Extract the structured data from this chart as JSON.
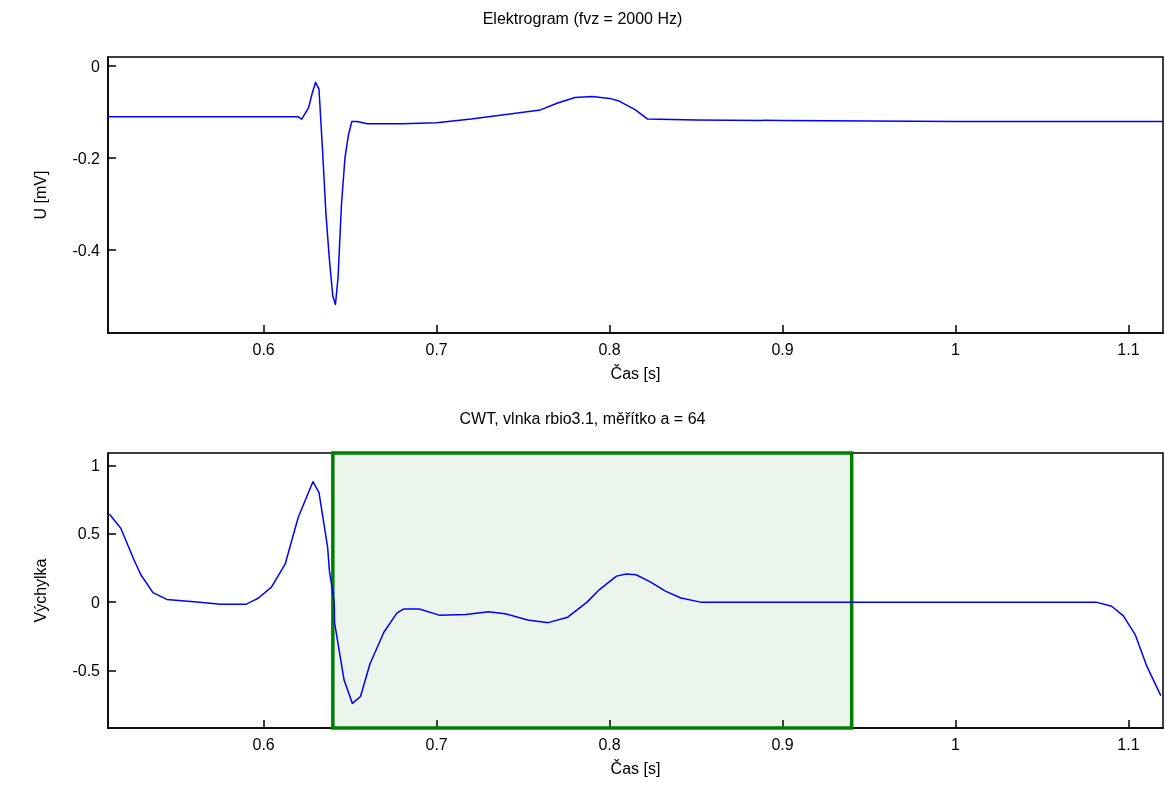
{
  "chart_data": [
    {
      "type": "line",
      "title": "Elektrogram (fvz = 2000 Hz)",
      "xlabel": "Čas [s]",
      "ylabel": "U [mV]",
      "xlim": [
        0.51,
        1.12
      ],
      "xticks": [
        0.6,
        0.7,
        0.8,
        0.9,
        1,
        1.1
      ],
      "ylim": [
        -0.58,
        0.02
      ],
      "yticks": [
        -0.4,
        -0.2,
        0
      ],
      "grid": false,
      "legend": false,
      "marker": "none",
      "line_style": "solid",
      "series": [
        {
          "color": "#0000ff",
          "x": [
            0.51,
            0.55,
            0.6,
            0.62,
            0.622,
            0.626,
            0.628,
            0.63,
            0.632,
            0.634,
            0.636,
            0.638,
            0.64,
            0.6415,
            0.643,
            0.645,
            0.647,
            0.649,
            0.651,
            0.654,
            0.66,
            0.68,
            0.7,
            0.72,
            0.74,
            0.76,
            0.77,
            0.78,
            0.79,
            0.8,
            0.805,
            0.815,
            0.822,
            0.85,
            0.9,
            1,
            1.12
          ],
          "values": [
            -0.11,
            -0.11,
            -0.11,
            -0.11,
            -0.115,
            -0.09,
            -0.06,
            -0.035,
            -0.05,
            -0.18,
            -0.32,
            -0.42,
            -0.5,
            -0.518,
            -0.46,
            -0.3,
            -0.2,
            -0.15,
            -0.12,
            -0.12,
            -0.125,
            -0.125,
            -0.123,
            -0.115,
            -0.105,
            -0.095,
            -0.08,
            -0.068,
            -0.066,
            -0.07,
            -0.075,
            -0.095,
            -0.115,
            -0.117,
            -0.118,
            -0.12,
            -0.12
          ]
        }
      ]
    },
    {
      "type": "line",
      "title": "CWT, vlnka rbio3.1, měřítko a = 64",
      "xlabel": "Čas [s]",
      "ylabel": "Výchylka",
      "xlim": [
        0.51,
        1.12
      ],
      "xticks": [
        0.6,
        0.7,
        0.8,
        0.9,
        1,
        1.1
      ],
      "ylim": [
        -0.92,
        1.09
      ],
      "yticks": [
        -0.5,
        0,
        0.5,
        1
      ],
      "grid": false,
      "legend": false,
      "marker": "none",
      "line_style": "solid",
      "bands": [
        {
          "axis": "x",
          "from": 0.64,
          "to": 0.94,
          "color": "#008000"
        }
      ],
      "series": [
        {
          "color": "#0000ff",
          "x": [
            0.511,
            0.5174,
            0.525,
            0.529,
            0.536,
            0.544,
            0.563,
            0.575,
            0.59,
            0.597,
            0.6045,
            0.6125,
            0.62,
            0.6285,
            0.632,
            0.637,
            0.638,
            0.6408,
            0.641,
            0.6465,
            0.6513,
            0.656,
            0.6615,
            0.6695,
            0.677,
            0.681,
            0.69,
            0.7015,
            0.717,
            0.73,
            0.7396,
            0.7527,
            0.7645,
            0.7758,
            0.787,
            0.794,
            0.804,
            0.8097,
            0.8153,
            0.8233,
            0.8323,
            0.8413,
            0.8527,
            0.95,
            1.0813,
            1.0903,
            1.0971,
            1.104,
            1.1107,
            1.1186
          ],
          "values": [
            0.64,
            0.54,
            0.31,
            0.2,
            0.07,
            0.02,
            0,
            -0.015,
            -0.015,
            0.03,
            0.11,
            0.28,
            0.62,
            0.88,
            0.8,
            0.4,
            0.23,
            0,
            -0.15,
            -0.57,
            -0.74,
            -0.69,
            -0.45,
            -0.22,
            -0.08,
            -0.05,
            -0.05,
            -0.095,
            -0.09,
            -0.07,
            -0.085,
            -0.13,
            -0.15,
            -0.11,
            0,
            0.09,
            0.19,
            0.205,
            0.2,
            0.15,
            0.08,
            0.03,
            0,
            0,
            0,
            -0.03,
            -0.1,
            -0.24,
            -0.47,
            -0.68
          ]
        }
      ]
    }
  ]
}
